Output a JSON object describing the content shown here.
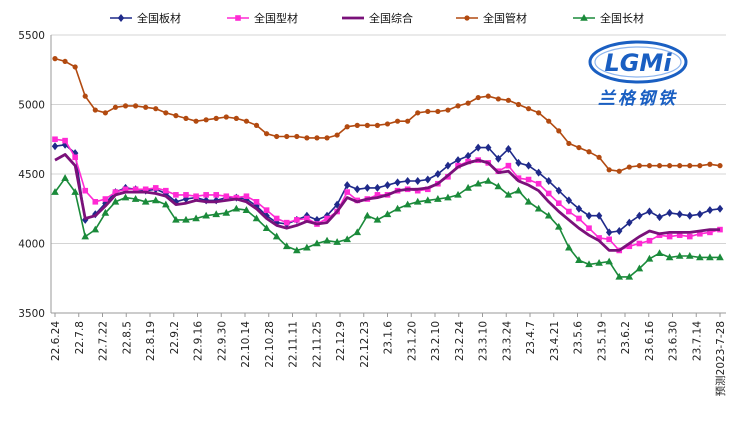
{
  "chart_data": {
    "type": "line",
    "title": "",
    "xlabel": "",
    "ylabel": "",
    "ylim": [
      3500,
      5500
    ],
    "yticks": [
      3500,
      4000,
      4500,
      5000,
      5500
    ],
    "grid": true,
    "legend_position": "top",
    "x_tick_labels": [
      "22.6.24",
      "22.7.8",
      "22.7.22",
      "22.8.5",
      "22.8.19",
      "22.9.2",
      "22.9.16",
      "22.9.30",
      "22.10.14",
      "22.10.28",
      "22.11.11",
      "22.11.25",
      "22.12.9",
      "22.12.23",
      "23.1.6",
      "23.1.20",
      "23.2.10",
      "23.2.24",
      "23.3.10",
      "23.3.24",
      "23.4.7",
      "23.4.21",
      "23.5.6",
      "23.5.19",
      "23.6.2",
      "23.6.16",
      "23.6.30",
      "23.7.14",
      "预测2023-7-28"
    ],
    "series": [
      {
        "name": "全国板材",
        "color": "#1f2a8a",
        "marker": "diamond",
        "values": [
          4700,
          4710,
          4650,
          4170,
          4210,
          4290,
          4370,
          4400,
          4390,
          4380,
          4390,
          4360,
          4300,
          4320,
          4330,
          4310,
          4310,
          4330,
          4330,
          4320,
          4270,
          4200,
          4150,
          4140,
          4170,
          4200,
          4170,
          4200,
          4280,
          4420,
          4390,
          4400,
          4400,
          4420,
          4440,
          4450,
          4450,
          4460,
          4500,
          4560,
          4600,
          4630,
          4690,
          4690,
          4610,
          4680,
          4580,
          4560,
          4510,
          4450,
          4380,
          4310,
          4250,
          4200,
          4200,
          4080,
          4090,
          4150,
          4200,
          4230,
          4190,
          4220,
          4210,
          4200,
          4210,
          4240,
          4250
        ]
      },
      {
        "name": "全国型材",
        "color": "#ff2ad4",
        "marker": "square",
        "values": [
          4750,
          4740,
          4620,
          4380,
          4300,
          4320,
          4370,
          4390,
          4390,
          4390,
          4400,
          4380,
          4350,
          4350,
          4340,
          4350,
          4350,
          4340,
          4330,
          4340,
          4300,
          4240,
          4180,
          4150,
          4170,
          4180,
          4140,
          4180,
          4230,
          4370,
          4310,
          4320,
          4350,
          4350,
          4380,
          4390,
          4380,
          4390,
          4430,
          4480,
          4560,
          4590,
          4600,
          4580,
          4520,
          4560,
          4470,
          4460,
          4430,
          4360,
          4290,
          4230,
          4180,
          4110,
          4040,
          4030,
          3950,
          3980,
          4000,
          4020,
          4060,
          4050,
          4060,
          4050,
          4070,
          4080,
          4100
        ]
      },
      {
        "name": "全国综合",
        "color": "#7a117a",
        "marker": "none",
        "values": [
          4600,
          4640,
          4560,
          4180,
          4200,
          4270,
          4350,
          4370,
          4370,
          4370,
          4360,
          4340,
          4280,
          4290,
          4310,
          4300,
          4300,
          4310,
          4320,
          4300,
          4250,
          4180,
          4130,
          4110,
          4130,
          4160,
          4140,
          4150,
          4230,
          4330,
          4300,
          4320,
          4330,
          4350,
          4380,
          4390,
          4390,
          4400,
          4430,
          4490,
          4550,
          4580,
          4600,
          4580,
          4510,
          4520,
          4450,
          4420,
          4380,
          4300,
          4230,
          4170,
          4110,
          4060,
          4020,
          3950,
          3950,
          4000,
          4050,
          4090,
          4070,
          4080,
          4080,
          4080,
          4090,
          4100,
          4100
        ]
      },
      {
        "name": "全国管材",
        "color": "#b24a10",
        "marker": "circle",
        "values": [
          5330,
          5310,
          5270,
          5060,
          4960,
          4940,
          4980,
          4990,
          4990,
          4980,
          4970,
          4940,
          4920,
          4900,
          4880,
          4890,
          4900,
          4910,
          4900,
          4880,
          4850,
          4790,
          4770,
          4770,
          4770,
          4760,
          4760,
          4760,
          4780,
          4840,
          4850,
          4850,
          4850,
          4860,
          4880,
          4880,
          4940,
          4950,
          4950,
          4960,
          4990,
          5010,
          5050,
          5060,
          5040,
          5030,
          5000,
          4970,
          4940,
          4880,
          4810,
          4720,
          4690,
          4660,
          4620,
          4530,
          4520,
          4550,
          4560,
          4560,
          4560,
          4560,
          4560,
          4560,
          4560,
          4570,
          4560
        ]
      },
      {
        "name": "全国长材",
        "color": "#1a8a3a",
        "marker": "triangle",
        "values": [
          4370,
          4470,
          4370,
          4050,
          4100,
          4220,
          4300,
          4330,
          4320,
          4300,
          4310,
          4280,
          4170,
          4170,
          4180,
          4200,
          4210,
          4220,
          4250,
          4240,
          4180,
          4110,
          4050,
          3980,
          3950,
          3970,
          4000,
          4020,
          4010,
          4030,
          4080,
          4200,
          4170,
          4210,
          4250,
          4280,
          4300,
          4310,
          4320,
          4330,
          4350,
          4400,
          4430,
          4450,
          4410,
          4350,
          4380,
          4300,
          4250,
          4200,
          4120,
          3970,
          3880,
          3850,
          3860,
          3870,
          3760,
          3760,
          3820,
          3890,
          3930,
          3900,
          3910,
          3910,
          3900,
          3900,
          3900
        ]
      }
    ]
  },
  "logo": {
    "text": "LGMi",
    "subtitle": "兰格钢铁",
    "colors": {
      "primary": "#1a5fc2",
      "accent": "#c91818"
    }
  }
}
